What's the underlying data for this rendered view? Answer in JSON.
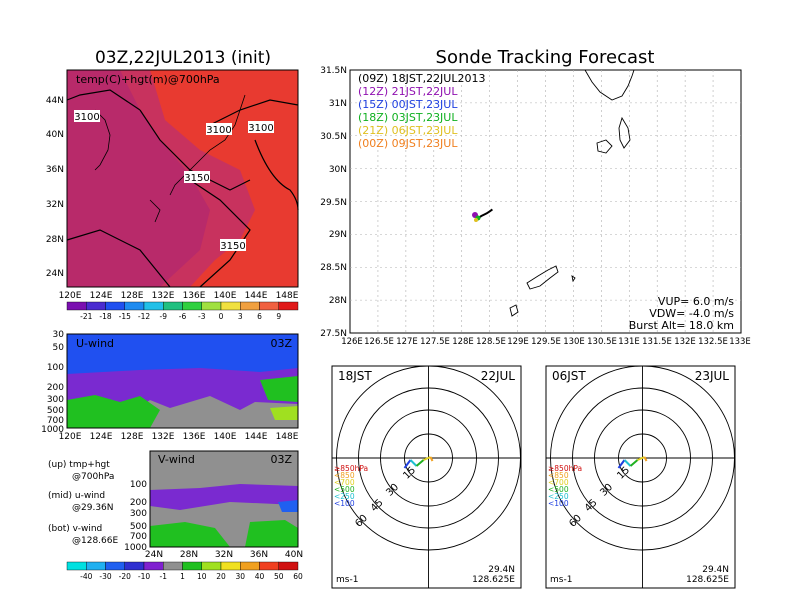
{
  "left_title": "03Z,22JUL2013 (init)",
  "right_title": "Sonde Tracking Forecast",
  "panel_top": {
    "label": "temp(C)+hgt(m)@700hPa",
    "contour_labels": [
      "3100",
      "3100",
      "3100",
      "3150",
      "3150"
    ],
    "y_ticks": [
      "44N",
      "40N",
      "36N",
      "32N",
      "28N",
      "24N"
    ],
    "x_ticks": [
      "120E",
      "124E",
      "128E",
      "132E",
      "136E",
      "140E",
      "144E",
      "148E"
    ],
    "colorbar": [
      "-21",
      "-18",
      "-15",
      "-12",
      "-9",
      "-6",
      "-3",
      "0",
      "3",
      "6",
      "9"
    ],
    "colorbar_colors": [
      "#7a0fb0",
      "#4a2cd0",
      "#2050f0",
      "#1e8bf0",
      "#22c0e8",
      "#20c080",
      "#30d040",
      "#a0e040",
      "#f0e040",
      "#f0a040",
      "#f06040",
      "#e01818"
    ]
  },
  "panel_u": {
    "label": "U-wind",
    "time": "03Z",
    "y_ticks": [
      "30",
      "50",
      "100",
      "200",
      "300",
      "500",
      "700",
      "1000"
    ],
    "x_ticks": [
      "120E",
      "124E",
      "128E",
      "132E",
      "136E",
      "140E",
      "144E",
      "148E"
    ]
  },
  "panel_v": {
    "label": "V-wind",
    "time": "03Z",
    "y_ticks": [
      "100",
      "200",
      "300",
      "500",
      "700",
      "1000"
    ],
    "x_ticks": [
      "24N",
      "28N",
      "32N",
      "36N",
      "40N"
    ],
    "colorbar": [
      "-40",
      "-30",
      "-20",
      "-10",
      "-1",
      "1",
      "10",
      "20",
      "30",
      "40",
      "50",
      "60"
    ],
    "colorbar_colors": [
      "#00e0e0",
      "#20b0f0",
      "#2060f0",
      "#3030d0",
      "#8020d0",
      "#909090",
      "#20c020",
      "#a0e020",
      "#f0e020",
      "#f0a020",
      "#f04020",
      "#d01010"
    ]
  },
  "legend_notes": [
    {
      "line1": "(up) tmp+hgt",
      "line2": "@700hPa"
    },
    {
      "line1": "(mid) u-wind",
      "line2": "@29.36N"
    },
    {
      "line1": "(bot) v-wind",
      "line2": "@128.66E"
    }
  ],
  "map": {
    "y_ticks": [
      "31.5N",
      "31N",
      "30.5N",
      "30N",
      "29.5N",
      "29N",
      "28.5N",
      "28N",
      "27.5N"
    ],
    "x_ticks": [
      "126E",
      "126.5E",
      "127E",
      "127.5E",
      "128E",
      "128.5E",
      "129E",
      "129.5E",
      "130E",
      "130.5E",
      "131E",
      "131.5E",
      "132E",
      "132.5E",
      "133E"
    ],
    "legend": [
      {
        "tag": "(09Z)",
        "text": "18JST,22JUL2013",
        "color": "#000000"
      },
      {
        "tag": "(12Z)",
        "text": "21JST,22JUL",
        "color": "#9010b0"
      },
      {
        "tag": "(15Z)",
        "text": "00JST,23JUL",
        "color": "#2040e0"
      },
      {
        "tag": "(18Z)",
        "text": "03JST,23JUL",
        "color": "#10b020"
      },
      {
        "tag": "(21Z)",
        "text": "06JST,23JUL",
        "color": "#e0c020"
      },
      {
        "tag": "(00Z)",
        "text": "09JST,23JUL",
        "color": "#f08020"
      }
    ],
    "params": [
      "VUP= 6.0 m/s",
      "VDW= -4.0 m/s",
      "Burst Alt= 18.0 km"
    ]
  },
  "hodographs": [
    {
      "time": "18JST",
      "date": "22JUL",
      "lat": "29.4N",
      "lon": "128.625E",
      "unit": "ms-1"
    },
    {
      "time": "06JST",
      "date": "23JUL",
      "lat": "29.4N",
      "lon": "128.625E",
      "unit": "ms-1"
    }
  ],
  "hodo_ring_labels": [
    "15",
    "30",
    "45",
    "60"
  ],
  "hodo_levels": [
    {
      "text": "≥850hPa",
      "color": "#d01010"
    },
    {
      "text": "<850",
      "color": "#f0a020"
    },
    {
      "text": "<700",
      "color": "#e0d020"
    },
    {
      "text": "<500",
      "color": "#20b020"
    },
    {
      "text": "<250",
      "color": "#20c0d0"
    },
    {
      "text": "<100",
      "color": "#2040e0"
    }
  ],
  "chart_data": [
    {
      "type": "heatmap",
      "title": "temp(C)+hgt(m)@700hPa",
      "xlim": [
        120,
        150
      ],
      "ylim": [
        22,
        48
      ],
      "colorbar_ticks": [
        -21,
        -18,
        -15,
        -12,
        -9,
        -6,
        -3,
        0,
        3,
        6,
        9
      ],
      "contours": [
        3100,
        3150
      ]
    },
    {
      "type": "heatmap",
      "title": "U-wind",
      "xlim": [
        120,
        150
      ],
      "ylevels_hPa": [
        30,
        50,
        100,
        200,
        300,
        500,
        700,
        1000
      ]
    },
    {
      "type": "heatmap",
      "title": "V-wind",
      "xlim": [
        24,
        40
      ],
      "ylevels_hPa": [
        100,
        200,
        300,
        500,
        700,
        1000
      ],
      "colorbar_ticks": [
        -40,
        -30,
        -20,
        -10,
        -1,
        1,
        10,
        20,
        30,
        40,
        50,
        60
      ]
    },
    {
      "type": "line",
      "title": "Sonde Tracking Forecast",
      "xlim": [
        126,
        133
      ],
      "ylim": [
        27.5,
        31.5
      ],
      "track": {
        "lon": [
          128.3,
          128.35,
          128.4,
          128.45,
          128.5,
          128.55
        ],
        "lat": [
          29.25,
          29.28,
          29.3,
          29.32,
          29.35,
          29.38
        ]
      }
    }
  ]
}
